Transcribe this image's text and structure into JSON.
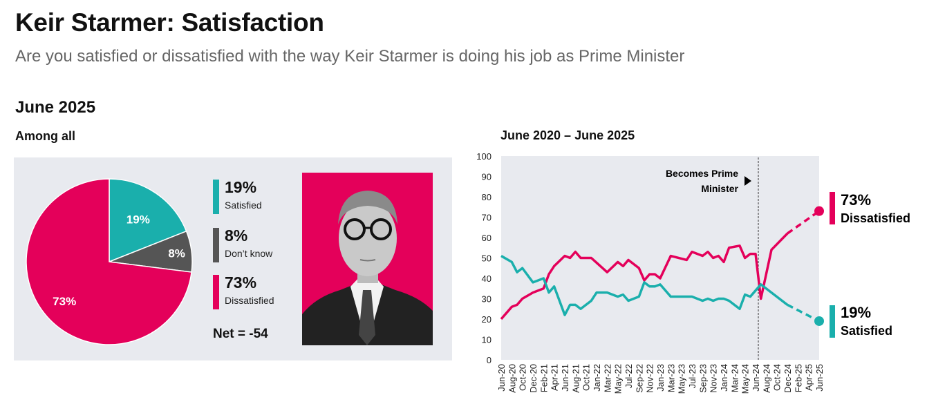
{
  "header": {
    "title": "Keir Starmer: Satisfaction",
    "subtitle": "Are you satisfied or dissatisfied with the way Keir Starmer is doing his job as Prime Minister"
  },
  "left": {
    "period": "June 2025",
    "group": "Among all",
    "legend": [
      {
        "pct": "19%",
        "label": "Satisfied",
        "color": "#1aafac"
      },
      {
        "pct": "8%",
        "label": "Don’t know",
        "color": "#555555"
      },
      {
        "pct": "73%",
        "label": "Dissatisfied",
        "color": "#e4005a"
      }
    ],
    "net": "Net = -54"
  },
  "right": {
    "title": "June 2020 – June 2025",
    "annotation_line1": "Becomes Prime",
    "annotation_line2": "Minister",
    "end_labels": [
      {
        "pct": "73%",
        "label": "Dissatisfied"
      },
      {
        "pct": "19%",
        "label": "Satisfied"
      }
    ]
  },
  "chart_data": [
    {
      "type": "pie",
      "title": "June 2025",
      "labels": [
        "Satisfied",
        "Don’t know",
        "Dissatisfied"
      ],
      "values": [
        19,
        8,
        73
      ],
      "data_labels": [
        "19%",
        "8%",
        "73%"
      ],
      "colors": [
        "#1aafac",
        "#555555",
        "#e4005a"
      ]
    },
    {
      "type": "line",
      "title": "June 2020 – June 2025",
      "x_unit": "months since Jun-20",
      "xlim": [
        0,
        60
      ],
      "ylim": [
        0,
        100
      ],
      "yticks": [
        0,
        10,
        20,
        30,
        40,
        50,
        60,
        70,
        80,
        90,
        100
      ],
      "xtick_labels": [
        "Jun-20",
        "Aug-20",
        "Oct-20",
        "Dec-20",
        "Feb-21",
        "Apr-21",
        "Jun-21",
        "Aug-21",
        "Oct-21",
        "Jan-22",
        "Mar-22",
        "May-22",
        "Jul-22",
        "Sep-22",
        "Nov-22",
        "Jan-23",
        "Mar-23",
        "May-23",
        "Jul-23",
        "Sep-23",
        "Nov-23",
        "Jan-24",
        "Mar-24",
        "May-24",
        "Jun-24",
        "Aug-24",
        "Oct-24",
        "Dec-24",
        "Feb-25",
        "Apr-25",
        "Jun-25"
      ],
      "annotation": {
        "x": 48.6,
        "text": "Becomes Prime Minister"
      },
      "series": [
        {
          "name": "Dissatisfied",
          "color": "#e4005a",
          "dashed_from": 54,
          "points": [
            [
              0,
              20
            ],
            [
              2,
              26
            ],
            [
              3,
              27
            ],
            [
              4,
              30
            ],
            [
              6,
              33
            ],
            [
              8,
              35
            ],
            [
              9,
              42
            ],
            [
              10,
              46
            ],
            [
              12,
              51
            ],
            [
              13,
              50
            ],
            [
              14,
              53
            ],
            [
              15,
              50
            ],
            [
              17,
              50
            ],
            [
              20,
              43
            ],
            [
              22,
              48
            ],
            [
              23,
              46
            ],
            [
              24,
              49
            ],
            [
              26,
              45
            ],
            [
              27,
              39
            ],
            [
              28,
              42
            ],
            [
              29,
              42
            ],
            [
              30,
              40
            ],
            [
              32,
              51
            ],
            [
              35,
              49
            ],
            [
              36,
              53
            ],
            [
              38,
              51
            ],
            [
              39,
              53
            ],
            [
              40,
              50
            ],
            [
              41,
              51
            ],
            [
              42,
              48
            ],
            [
              43,
              55
            ],
            [
              45,
              56
            ],
            [
              46,
              50
            ],
            [
              47,
              52
            ],
            [
              48,
              52
            ],
            [
              49,
              30
            ],
            [
              51,
              54
            ],
            [
              54,
              62
            ],
            [
              60,
              73
            ]
          ]
        },
        {
          "name": "Satisfied",
          "color": "#1aafac",
          "dashed_from": 54,
          "points": [
            [
              0,
              51
            ],
            [
              2,
              48
            ],
            [
              3,
              43
            ],
            [
              4,
              45
            ],
            [
              6,
              38
            ],
            [
              8,
              40
            ],
            [
              9,
              33
            ],
            [
              10,
              36
            ],
            [
              12,
              22
            ],
            [
              13,
              27
            ],
            [
              14,
              27
            ],
            [
              15,
              25
            ],
            [
              17,
              29
            ],
            [
              18,
              33
            ],
            [
              20,
              33
            ],
            [
              22,
              31
            ],
            [
              23,
              32
            ],
            [
              24,
              29
            ],
            [
              26,
              31
            ],
            [
              27,
              38
            ],
            [
              28,
              36
            ],
            [
              29,
              36
            ],
            [
              30,
              37
            ],
            [
              32,
              31
            ],
            [
              36,
              31
            ],
            [
              38,
              29
            ],
            [
              39,
              30
            ],
            [
              40,
              29
            ],
            [
              41,
              30
            ],
            [
              42,
              30
            ],
            [
              43,
              29
            ],
            [
              45,
              25
            ],
            [
              46,
              32
            ],
            [
              47,
              31
            ],
            [
              48,
              34
            ],
            [
              49,
              37
            ],
            [
              54,
              27
            ],
            [
              60,
              19
            ]
          ]
        }
      ]
    }
  ]
}
